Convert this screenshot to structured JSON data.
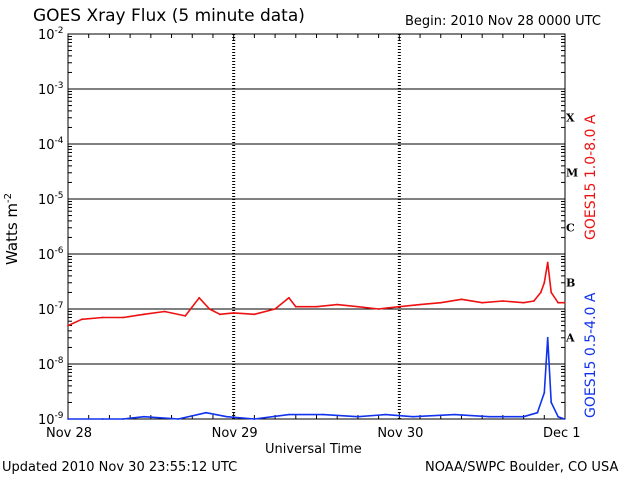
{
  "header": {
    "title": "GOES Xray Flux (5 minute data)",
    "begin": "Begin:  2010 Nov 28 0000 UTC"
  },
  "footer": {
    "updated": "Updated 2010 Nov 30 23:55:12 UTC",
    "credit": "NOAA/SWPC Boulder, CO USA"
  },
  "chart_data": {
    "type": "line",
    "title": "GOES Xray Flux (5 minute data)",
    "xlabel": "Universal Time",
    "ylabel": "Watts m",
    "ylabel_sup": "-2",
    "yscale": "log",
    "ylim": [
      1e-09,
      0.01
    ],
    "xlim_days": [
      0,
      3
    ],
    "x_ticks": [
      "Nov 28",
      "Nov 29",
      "Nov 30",
      "Dec 1"
    ],
    "y_ticks": [
      {
        "base": "10",
        "exp": "-2"
      },
      {
        "base": "10",
        "exp": "-3"
      },
      {
        "base": "10",
        "exp": "-4"
      },
      {
        "base": "10",
        "exp": "-5"
      },
      {
        "base": "10",
        "exp": "-6"
      },
      {
        "base": "10",
        "exp": "-7"
      },
      {
        "base": "10",
        "exp": "-8"
      },
      {
        "base": "10",
        "exp": "-9"
      }
    ],
    "flare_classes": [
      "X",
      "M",
      "C",
      "B",
      "A"
    ],
    "grid": true,
    "series": [
      {
        "name": "GOES15 1.0-8.0 A",
        "color": "#ee1111",
        "x": [
          "Nov 28 00:00",
          "Nov 28 02:00",
          "Nov 28 05:00",
          "Nov 28 08:00",
          "Nov 28 11:00",
          "Nov 28 14:00",
          "Nov 28 17:00",
          "Nov 28 19:00",
          "Nov 28 20:30",
          "Nov 28 22:00",
          "Nov 29 00:00",
          "Nov 29 03:00",
          "Nov 29 06:00",
          "Nov 29 08:00",
          "Nov 29 09:00",
          "Nov 29 12:00",
          "Nov 29 15:00",
          "Nov 29 18:00",
          "Nov 29 21:00",
          "Nov 30 00:00",
          "Nov 30 03:00",
          "Nov 30 06:00",
          "Nov 30 09:00",
          "Nov 30 12:00",
          "Nov 30 15:00",
          "Nov 30 18:00",
          "Nov 30 19:30",
          "Nov 30 20:30",
          "Nov 30 21:00",
          "Nov 30 21:30",
          "Nov 30 22:00",
          "Nov 30 23:00",
          "Nov 30 23:55"
        ],
        "y": [
          5e-08,
          6.5e-08,
          7e-08,
          7e-08,
          8e-08,
          9e-08,
          7.5e-08,
          1.6e-07,
          1e-07,
          8e-08,
          8.5e-08,
          8e-08,
          1e-07,
          1.6e-07,
          1.1e-07,
          1.1e-07,
          1.2e-07,
          1.1e-07,
          1e-07,
          1.1e-07,
          1.2e-07,
          1.3e-07,
          1.5e-07,
          1.3e-07,
          1.4e-07,
          1.3e-07,
          1.4e-07,
          2e-07,
          3e-07,
          7e-07,
          2e-07,
          1.3e-07,
          1.3e-07
        ]
      },
      {
        "name": "GOES15 0.5-4.0 A",
        "color": "#1133ee",
        "x": [
          "Nov 28 00:00",
          "Nov 28 05:00",
          "Nov 28 08:00",
          "Nov 28 11:00",
          "Nov 28 16:00",
          "Nov 28 20:00",
          "Nov 28 23:00",
          "Nov 29 03:00",
          "Nov 29 08:00",
          "Nov 29 13:00",
          "Nov 29 18:00",
          "Nov 29 22:00",
          "Nov 30 02:00",
          "Nov 30 08:00",
          "Nov 30 13:00",
          "Nov 30 18:00",
          "Nov 30 20:00",
          "Nov 30 21:00",
          "Nov 30 21:30",
          "Nov 30 22:00",
          "Nov 30 23:00",
          "Nov 30 23:55"
        ],
        "y": [
          1e-09,
          1e-09,
          1e-09,
          1.1e-09,
          1e-09,
          1.3e-09,
          1.1e-09,
          1e-09,
          1.2e-09,
          1.2e-09,
          1.1e-09,
          1.2e-09,
          1.1e-09,
          1.2e-09,
          1.1e-09,
          1.1e-09,
          1.3e-09,
          3e-09,
          3e-08,
          2e-09,
          1.1e-09,
          1e-09
        ]
      }
    ]
  }
}
